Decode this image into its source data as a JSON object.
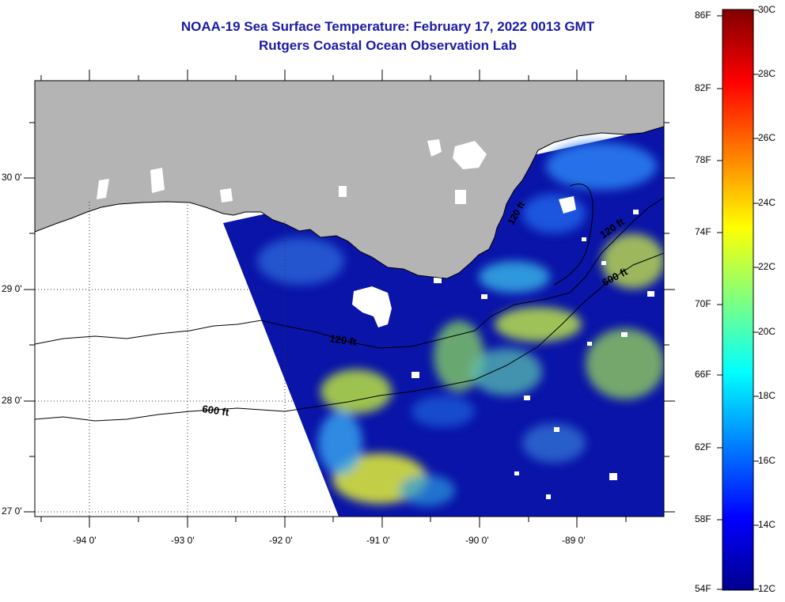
{
  "title": {
    "line1": "NOAA-19 Sea Surface Temperature:  February 17, 2022 0013 GMT",
    "line2": "Rutgers Coastal Ocean Observation Lab"
  },
  "map": {
    "lon_labels": [
      "-94 0'",
      "-93 0'",
      "-92 0'",
      "-91 0'",
      "-90 0'",
      "-89 0'"
    ],
    "lat_labels": [
      "30 0'",
      "29 0'",
      "28 0'",
      "27 0'"
    ],
    "lon_range": [
      -94.5,
      -88.0
    ],
    "lat_range": [
      26.95,
      30.85
    ],
    "contour_labels": [
      "120 ft",
      "600 ft",
      "120 ft",
      "600 ft",
      "120 ft"
    ],
    "colors": {
      "land": "#b4b4b4",
      "no_data": "#ffffff",
      "cold_water": "#0a14a8"
    }
  },
  "colorbar": {
    "fahrenheit_labels": [
      "86F",
      "82F",
      "78F",
      "74F",
      "70F",
      "66F",
      "62F",
      "58F",
      "54F"
    ],
    "celsius_labels": [
      "30C",
      "28C",
      "26C",
      "24C",
      "22C",
      "20C",
      "18C",
      "16C",
      "14C",
      "12C"
    ],
    "range_c": [
      12,
      30
    ],
    "range_f": [
      54,
      86
    ],
    "colormap": "jet"
  }
}
